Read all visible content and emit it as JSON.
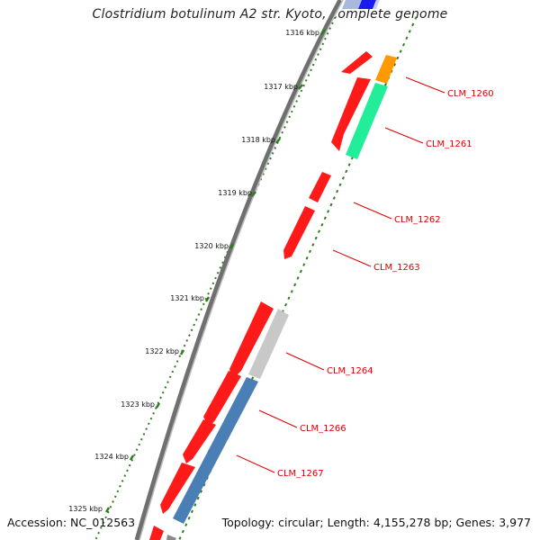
{
  "map": {
    "title": "Clostridium botulinum A2 str. Kyoto, complete genome",
    "accession": "Accession: NC_012563",
    "summary": "Topology: circular; Length: 4,155,278 bp; Genes: 3,977"
  },
  "colors": {
    "backbone": "#8c8c8c",
    "tick": "#2e7d1e",
    "label": "#dd0000",
    "gene_red": "#ff1a1a",
    "gene_orange": "#ff9900",
    "gene_green": "#22ee99",
    "gene_grey": "#c8c8c8",
    "gene_blue": "#4a7fb5",
    "gene_darkblue": "#1a1aee",
    "gene_paleblue": "#a9b8dd"
  },
  "scale_labels": [
    "1316 kbp",
    "1317 kbp",
    "1318 kbp",
    "1319 kbp",
    "1320 kbp",
    "1321 kbp",
    "1322 kbp",
    "1323 kbp",
    "1324 kbp",
    "1325 kbp"
  ],
  "gene_labels": [
    "CLM_1260",
    "CLM_1261",
    "CLM_1262",
    "CLM_1263",
    "CLM_1264",
    "CLM_1266",
    "CLM_1267"
  ]
}
